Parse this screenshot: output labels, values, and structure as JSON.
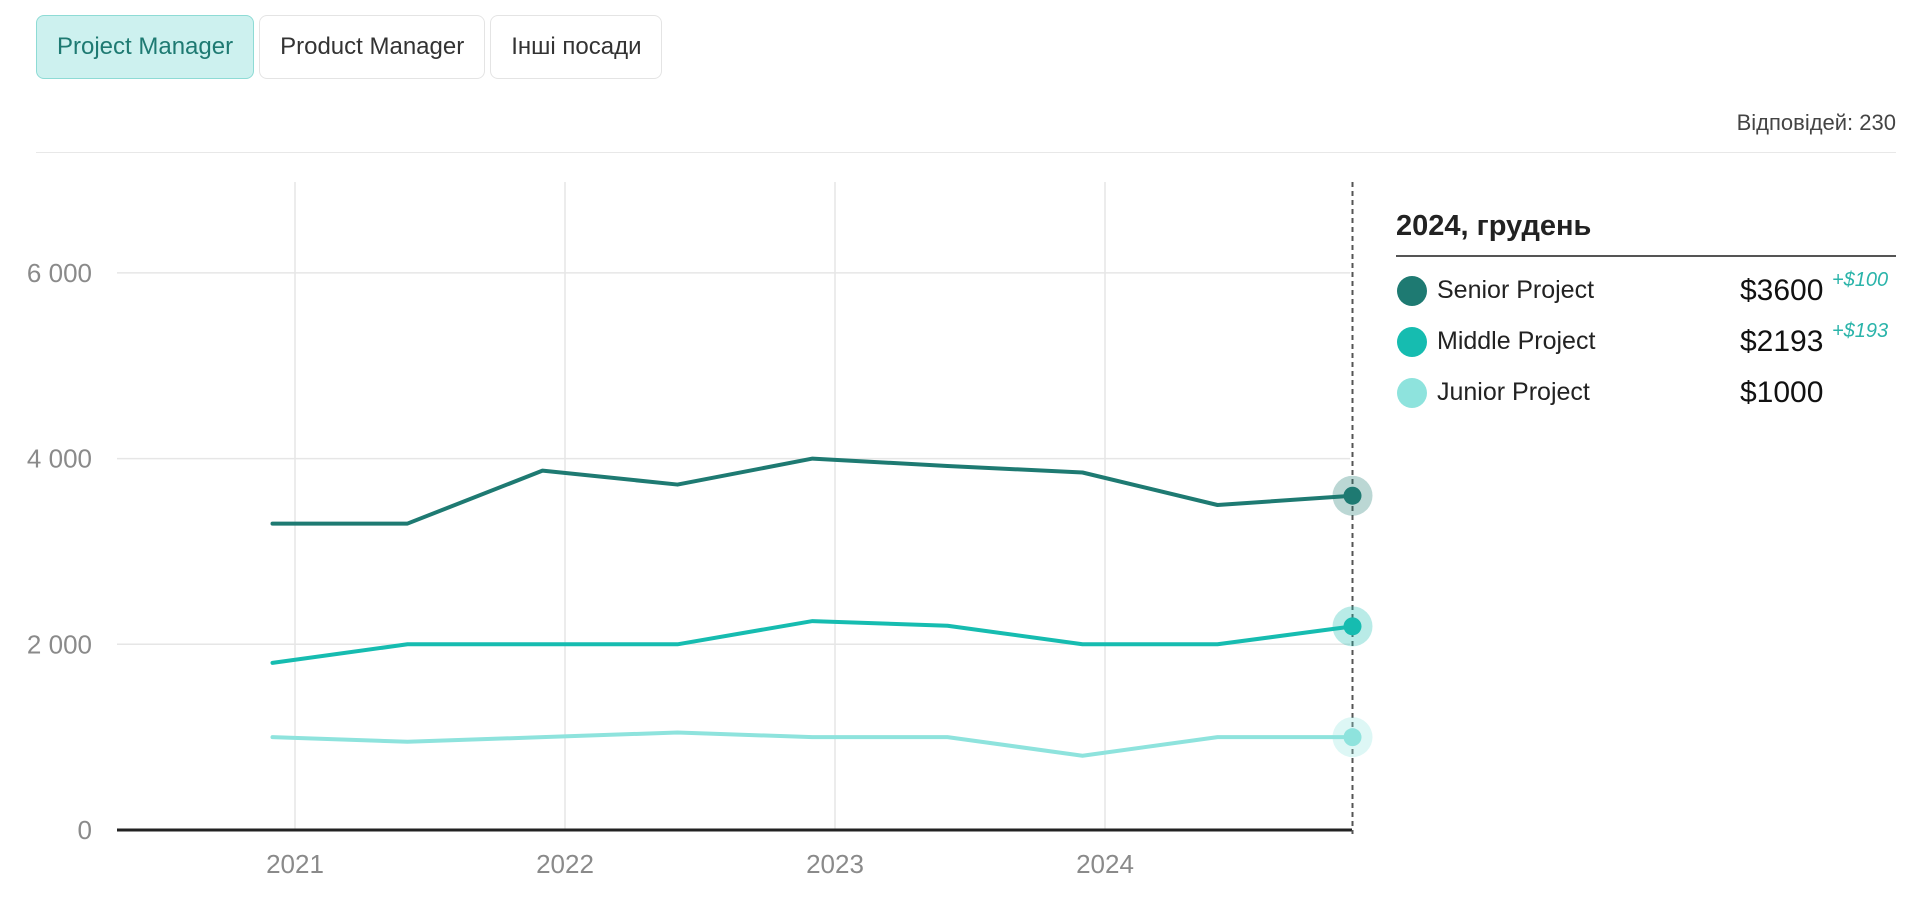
{
  "tabs": [
    {
      "label": "Project Manager",
      "active": true
    },
    {
      "label": "Product Manager",
      "active": false
    },
    {
      "label": "Інші посади",
      "active": false
    }
  ],
  "responses_label": "Відповідей: 230",
  "panel": {
    "title": "2024, грудень",
    "rows": [
      {
        "name": "Senior Project",
        "value": "$3600",
        "delta": "+$100",
        "color": "#1e7a72"
      },
      {
        "name": "Middle Project",
        "value": "$2193",
        "delta": "+$193",
        "color": "#16bcb0"
      },
      {
        "name": "Junior Project",
        "value": "$1000",
        "delta": "",
        "color": "#8ee3dd"
      }
    ]
  },
  "chart_data": {
    "type": "line",
    "x": [
      "2020-12",
      "2021-06",
      "2021-12",
      "2022-06",
      "2022-12",
      "2023-06",
      "2023-12",
      "2024-06",
      "2024-12"
    ],
    "x_ticks": [
      "2021",
      "2022",
      "2023",
      "2024"
    ],
    "y_ticks": [
      "0",
      "2 000",
      "4 000",
      "6 000"
    ],
    "ylim": [
      0,
      7000
    ],
    "grid": true,
    "series": [
      {
        "name": "Senior Project",
        "color": "#1e7a72",
        "values": [
          3300,
          3300,
          3870,
          3720,
          4000,
          3920,
          3850,
          3500,
          3600
        ]
      },
      {
        "name": "Middle Project",
        "color": "#16bcb0",
        "values": [
          1800,
          2000,
          2000,
          2000,
          2250,
          2200,
          2000,
          2000,
          2193
        ]
      },
      {
        "name": "Junior Project",
        "color": "#8ee3dd",
        "values": [
          1000,
          950,
          1000,
          1050,
          1000,
          1000,
          800,
          1000,
          1000
        ]
      }
    ]
  }
}
